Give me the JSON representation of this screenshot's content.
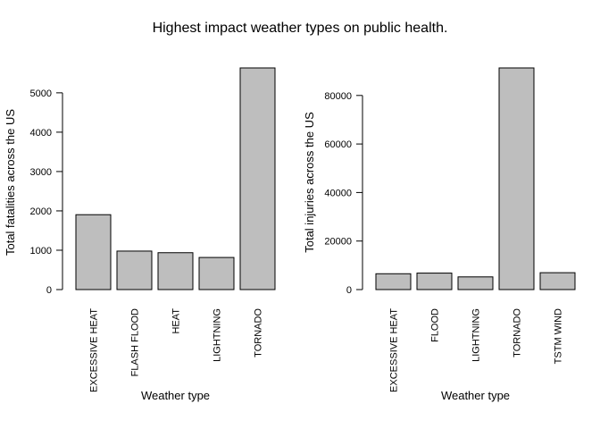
{
  "figure": {
    "title": "Highest impact weather types on public health."
  },
  "chart_data": [
    {
      "type": "bar",
      "categories": [
        "EXCESSIVE HEAT",
        "FLASH FLOOD",
        "HEAT",
        "LIGHTNING",
        "TORNADO"
      ],
      "values": [
        1903,
        978,
        937,
        816,
        5633
      ],
      "xlabel": "Weather type",
      "ylabel": "Total fatalities across the US",
      "yticks": [
        0,
        1000,
        2000,
        3000,
        4000,
        5000
      ],
      "ylim": [
        0,
        5633
      ],
      "bar_color": "#bebebe",
      "grid": false
    },
    {
      "type": "bar",
      "categories": [
        "EXCESSIVE HEAT",
        "FLOOD",
        "LIGHTNING",
        "TORNADO",
        "TSTM WIND"
      ],
      "values": [
        6525,
        6789,
        5230,
        91346,
        6957
      ],
      "xlabel": "Weather type",
      "ylabel": "Total injuries across the US",
      "yticks": [
        0,
        20000,
        40000,
        60000,
        80000
      ],
      "ylim": [
        0,
        91346
      ],
      "bar_color": "#bebebe",
      "grid": false
    }
  ]
}
